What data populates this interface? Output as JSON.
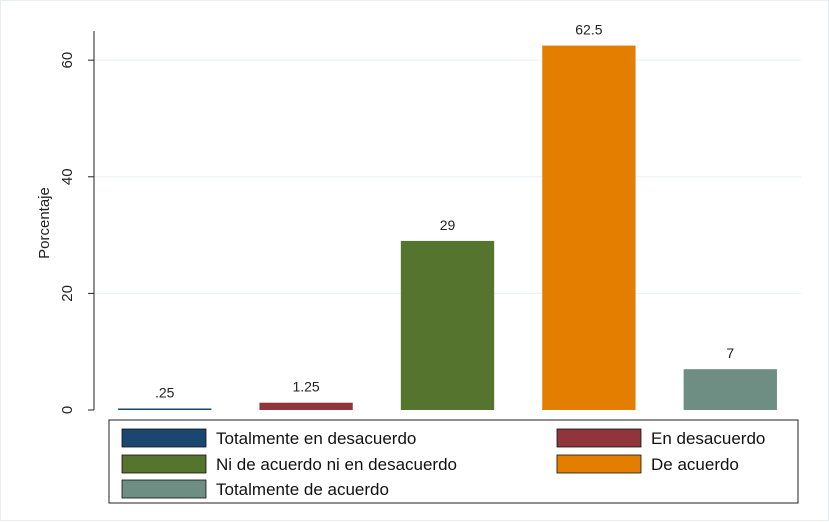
{
  "chart_data": {
    "type": "bar",
    "ylabel": "Porcentaje",
    "xlabel": "",
    "ylim": [
      0,
      65
    ],
    "yticks": [
      0,
      20,
      40,
      60
    ],
    "grid": true,
    "legend_position": "bottom",
    "categories": [
      "Totalmente en desacuerdo",
      "En desacuerdo",
      "Ni de acuerdo ni en desacuerdo",
      "De acuerdo",
      "Totalmente de acuerdo"
    ],
    "values": [
      0.25,
      1.25,
      29,
      62.5,
      7
    ],
    "value_labels": [
      ".25",
      "1.25",
      "29",
      "62.5",
      "7"
    ],
    "colors": [
      "#1a476f",
      "#90353b",
      "#55752f",
      "#e37e00",
      "#6e8e84"
    ]
  }
}
